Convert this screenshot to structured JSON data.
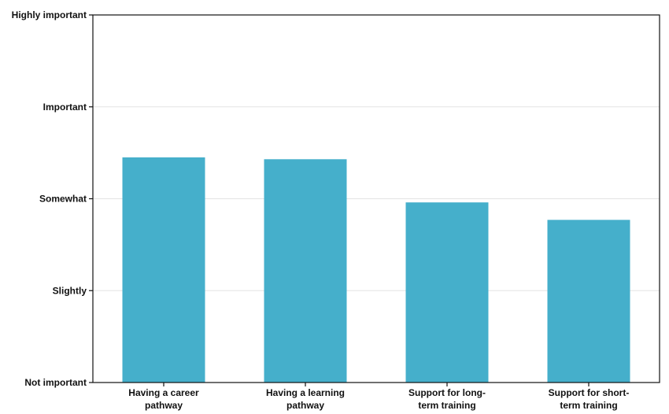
{
  "chart_data": {
    "type": "bar",
    "categories": [
      [
        "Having a career",
        "pathway"
      ],
      [
        "Having a learning",
        "pathway"
      ],
      [
        "Support for long-",
        "term training"
      ],
      [
        "Support for short-",
        "term training"
      ]
    ],
    "values": [
      2.45,
      2.43,
      1.96,
      1.77
    ],
    "ylim": [
      0,
      4
    ],
    "yticks": [
      {
        "value": 0,
        "label": "Not important"
      },
      {
        "value": 1,
        "label": "Slightly"
      },
      {
        "value": 2,
        "label": "Somewhat"
      },
      {
        "value": 3,
        "label": "Important"
      },
      {
        "value": 4,
        "label": "Highly important"
      }
    ],
    "grid": true,
    "colors": {
      "bar": "#45afcb",
      "grid": "#e3e3e3",
      "axis": "#111111"
    }
  }
}
